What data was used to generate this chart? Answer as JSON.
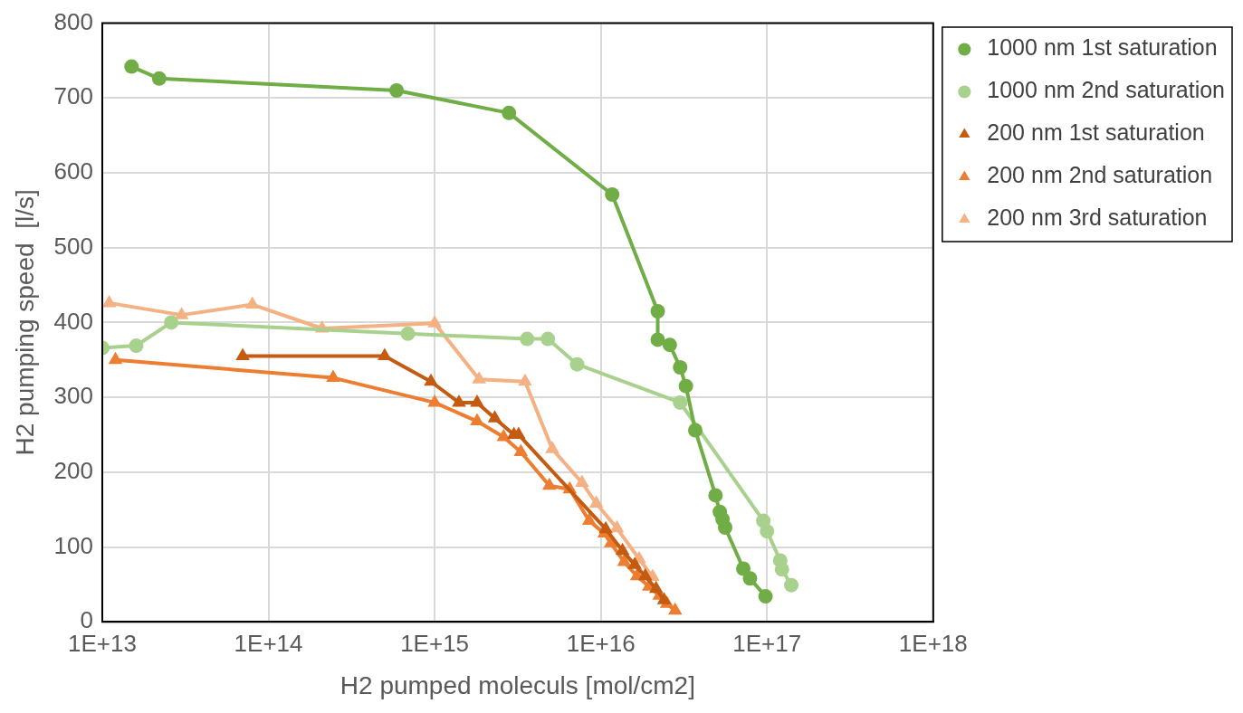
{
  "chart_data": {
    "type": "line",
    "xlabel": "H2 pumped moleculs [mol/cm2]",
    "ylabel": "H2 pumping speed  [l/s]",
    "log": "x",
    "grid": true,
    "legend": "right",
    "marker": "circle",
    "line_style": "solid",
    "xlim": [
      10000000000000.0,
      1e+18
    ],
    "xticks": [
      {
        "value": 10000000000000.0,
        "label": "1E+13"
      },
      {
        "value": 100000000000000.0,
        "label": "1E+14"
      },
      {
        "value": 1000000000000000.0,
        "label": "1E+15"
      },
      {
        "value": 1e+16,
        "label": "1E+16"
      },
      {
        "value": 1e+17,
        "label": "1E+17"
      },
      {
        "value": 1e+18,
        "label": "1E+18"
      }
    ],
    "ylim": [
      0,
      800
    ],
    "yticks": [
      0,
      100,
      200,
      300,
      400,
      500,
      600,
      700,
      800
    ],
    "series": [
      {
        "name": "1000 nm 1st saturation",
        "color": "#70ad47",
        "x": [
          15000000000000.0,
          22000000000000.0,
          590000000000000.0,
          2800000000000000.0,
          1.17e+16,
          2.2e+16,
          2.2e+16,
          2.6e+16,
          3e+16,
          3.25e+16,
          3.7e+16,
          4.9e+16,
          5.2e+16,
          5.4e+16,
          5.6e+16,
          7.2e+16,
          7.9e+16,
          9.8e+16
        ],
        "values": [
          742,
          726,
          710,
          680,
          571,
          415,
          377,
          370,
          340,
          315,
          256,
          169,
          147,
          137,
          126,
          71,
          58,
          34
        ]
      },
      {
        "name": "1000 nm 2nd saturation",
        "color": "#a9d18e",
        "x": [
          10000000000000.0,
          16000000000000.0,
          26000000000000.0,
          690000000000000.0,
          3600000000000000.0,
          4800000000000000.0,
          7200000000000000.0,
          3e+16,
          9.5e+16,
          1e+17,
          1.2e+17,
          1.23e+17,
          1.4e+17
        ],
        "values": [
          366,
          369,
          400,
          385,
          378,
          378,
          344,
          293,
          135,
          121,
          82,
          70,
          49
        ]
      },
      {
        "name": "200 nm 1st saturation",
        "color": "#c55a11",
        "marker": "triangle",
        "x": [
          70000000000000.0,
          500000000000000.0,
          950000000000000.0,
          1400000000000000.0,
          1800000000000000.0,
          2300000000000000.0,
          3000000000000000.0,
          3200000000000000.0,
          1.07e+16,
          1.35e+16,
          1.6e+16,
          1.85e+16,
          2.15e+16,
          2.4e+16
        ],
        "values": [
          355,
          355,
          321,
          293,
          293,
          272,
          250,
          250,
          124,
          95,
          76,
          61,
          44,
          29
        ]
      },
      {
        "name": "200 nm 2nd saturation",
        "color": "#ed7d31",
        "marker": "triangle",
        "x": [
          12000000000000.0,
          245000000000000.0,
          1000000000000000.0,
          1800000000000000.0,
          2600000000000000.0,
          3300000000000000.0,
          4900000000000000.0,
          6500000000000000.0,
          8500000000000000.0,
          1.05e+16,
          1.15e+16,
          1.38e+16,
          1.65e+16,
          1.95e+16,
          2.25e+16,
          2.5e+16,
          2.8e+16
        ],
        "values": [
          350,
          326,
          293,
          268,
          247,
          227,
          182,
          177,
          135,
          118,
          105,
          80,
          61,
          47,
          35,
          24,
          15
        ]
      },
      {
        "name": "200 nm 3rd saturation",
        "color": "#f4b183",
        "marker": "triangle",
        "x": [
          11000000000000.0,
          30000000000000.0,
          80000000000000.0,
          210000000000000.0,
          1000000000000000.0,
          1850000000000000.0,
          3500000000000000.0,
          5100000000000000.0,
          7700000000000000.0,
          9400000000000000.0,
          1.25e+16,
          1.7e+16,
          2.05e+16
        ],
        "values": [
          426,
          410,
          424,
          392,
          399,
          324,
          321,
          231,
          186,
          158,
          125,
          84,
          60
        ]
      }
    ]
  }
}
